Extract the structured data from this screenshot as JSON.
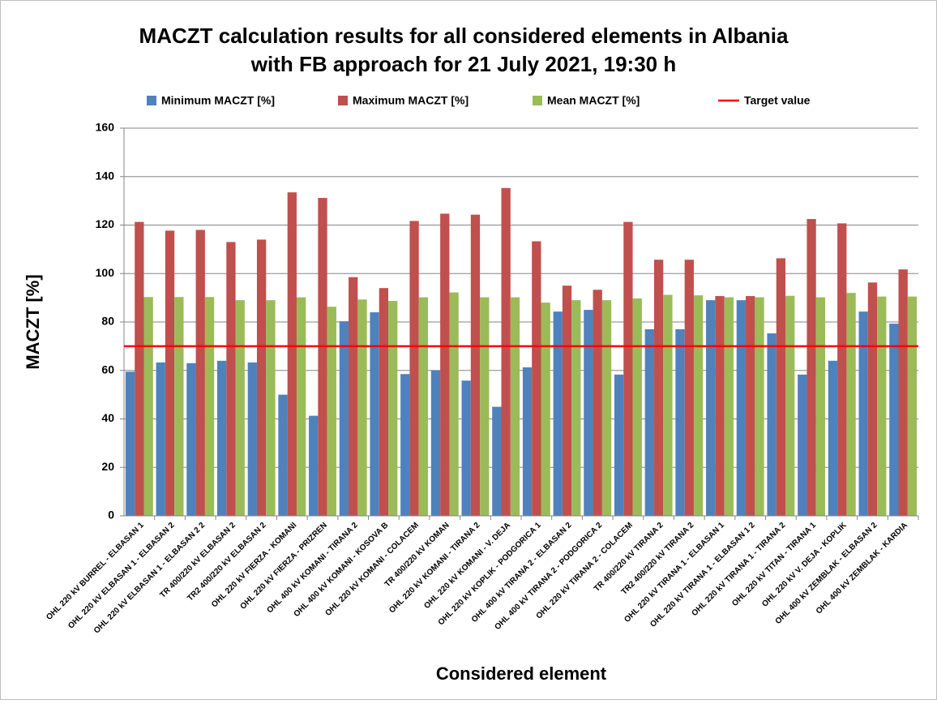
{
  "chart_data": {
    "type": "bar",
    "title": "MACZT calculation results for all considered elements in Albania",
    "subtitle": "with FB approach for 21 July 2021, 19:30 h",
    "xlabel": "Considered element",
    "ylabel": "MACZT [%]",
    "categories": [
      "OHL 220 kV BURREL - ELBASAN 1",
      "OHL 220 kV ELBASAN 1 - ELBASAN 2",
      "OHL 220 kV ELBASAN 1 - ELBASAN 2 2",
      "TR 400/220 kV ELBASAN 2",
      "TR2 400/220 kV ELBASAN 2",
      "OHL 220 kV FIERZA - KOMANI",
      "OHL 220 kV FIERZA - PRIZREN",
      "OHL 400 kV KOMANI - TIRANA 2",
      "OHL 400 kV KOMANI - KOSOVA B",
      "OHL 220 kV KOMANI - COLACEM",
      "TR 400/220 kV KOMAN",
      "OHL 220 kV KOMANI - TIRANA 2",
      "OHL 220 kV KOMANI - V. DEJA",
      "OHL 220 kV KOPLIK - PODGORICA 1",
      "OHL 400 kV TIRANA 2 - ELBASAN 2",
      "OHL 400 kV TIRANA 2 - PODGORICA 2",
      "OHL 220 kV TIRANA 2 - COLACEM",
      "TR 400/220 kV TIRANA 2",
      "TR2 400/220 kV TIRANA 2",
      "OHL 220 kV TIRANA 1 - ELBASAN 1",
      "OHL 220 kV TIRANA 1 - ELBASAN 1 2",
      "OHL 220 kV TIRANA 1 - TIRANA 2",
      "OHL 220 kV TITAN - TIRANA 1",
      "OHL 220 kV V. DEJA - KOPLIK",
      "OHL 400 kV ZEMBLAK - ELBASAN 2",
      "OHL 400 kV ZEMBLAK - KARDIA"
    ],
    "series": [
      {
        "name": "Minimum MACZT [%]",
        "color": "#4f81bd",
        "values": [
          59.5,
          63.3,
          63,
          64,
          63.3,
          50,
          41.3,
          80.3,
          84,
          58.5,
          60,
          55.8,
          45,
          61.3,
          84.3,
          85,
          58.3,
          77,
          77,
          89,
          89,
          75.3,
          58.3,
          64,
          84.3,
          79.3
        ]
      },
      {
        "name": "Maximum MACZT [%]",
        "color": "#c0504d",
        "values": [
          121.3,
          117.7,
          118,
          113,
          114,
          133.5,
          131.2,
          98.5,
          94,
          121.7,
          124.7,
          124.3,
          135.3,
          113.3,
          95,
          93.3,
          121.3,
          105.7,
          105.7,
          90.7,
          90.7,
          106.3,
          122.5,
          120.7,
          96.3,
          101.7
        ]
      },
      {
        "name": "Mean MACZT [%]",
        "color": "#9bbb59",
        "values": [
          90.3,
          90.3,
          90.3,
          89,
          89,
          90.2,
          86.3,
          89.3,
          88.7,
          90.2,
          92.2,
          90.2,
          90.2,
          88,
          89,
          89,
          89.7,
          91.2,
          91,
          90.2,
          90.2,
          90.8,
          90.2,
          92,
          90.5,
          90.5
        ]
      }
    ],
    "target": {
      "name": "Target value",
      "value": 70,
      "color": "#ff0000"
    },
    "ylim": [
      0,
      160
    ],
    "yticks": [
      0,
      20,
      40,
      60,
      80,
      100,
      120,
      140,
      160
    ],
    "grid": true
  }
}
